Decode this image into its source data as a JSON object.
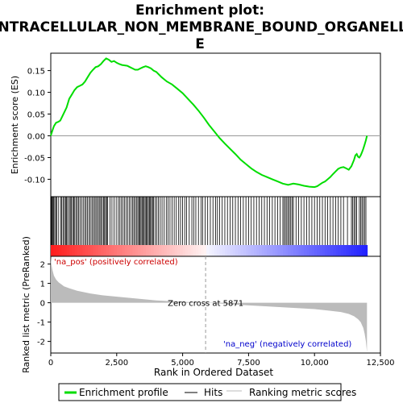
{
  "chart_data": {
    "type": "line",
    "title_line1": "Enrichment plot:",
    "title_line2": "INTRACELLULAR_NON_MEMBRANE_BOUND_ORGANELL",
    "title_line3": "E",
    "es_panel": {
      "ylabel": "Enrichment score (ES)",
      "ylim": [
        -0.14,
        0.19
      ],
      "yticks": [
        -0.1,
        -0.05,
        0.0,
        0.05,
        0.1,
        0.15
      ],
      "ytick_labels": [
        "-0.10",
        "-0.05",
        "0.00",
        "0.05",
        "0.10",
        "0.15"
      ],
      "series_name": "Enrichment profile",
      "color": "#00dd00",
      "x": [
        0,
        60,
        120,
        200,
        280,
        360,
        440,
        520,
        600,
        700,
        800,
        900,
        1000,
        1100,
        1200,
        1300,
        1400,
        1500,
        1600,
        1700,
        1800,
        1900,
        2000,
        2100,
        2200,
        2300,
        2400,
        2500,
        2600,
        2700,
        2800,
        2900,
        3000,
        3100,
        3200,
        3300,
        3400,
        3500,
        3600,
        3700,
        3800,
        3900,
        4000,
        4200,
        4400,
        4600,
        4800,
        5000,
        5200,
        5400,
        5600,
        5800,
        6000,
        6200,
        6400,
        6600,
        6800,
        7000,
        7200,
        7400,
        7600,
        7800,
        8000,
        8200,
        8400,
        8600,
        8800,
        9000,
        9200,
        9400,
        9600,
        9800,
        10000,
        10100,
        10200,
        10300,
        10400,
        10500,
        10600,
        10700,
        10800,
        10900,
        11000,
        11100,
        11200,
        11300,
        11400,
        11500,
        11550,
        11600,
        11650,
        11700,
        11750,
        11800,
        11850,
        11900,
        11950,
        11990
      ],
      "y": [
        0.0,
        0.012,
        0.022,
        0.03,
        0.032,
        0.035,
        0.045,
        0.055,
        0.065,
        0.085,
        0.095,
        0.105,
        0.112,
        0.115,
        0.118,
        0.125,
        0.135,
        0.145,
        0.152,
        0.158,
        0.16,
        0.165,
        0.172,
        0.178,
        0.175,
        0.17,
        0.172,
        0.168,
        0.165,
        0.163,
        0.162,
        0.161,
        0.158,
        0.155,
        0.152,
        0.152,
        0.155,
        0.158,
        0.16,
        0.158,
        0.155,
        0.15,
        0.147,
        0.135,
        0.125,
        0.118,
        0.108,
        0.098,
        0.085,
        0.072,
        0.058,
        0.042,
        0.025,
        0.01,
        -0.005,
        -0.018,
        -0.03,
        -0.042,
        -0.055,
        -0.065,
        -0.075,
        -0.083,
        -0.09,
        -0.095,
        -0.1,
        -0.105,
        -0.11,
        -0.113,
        -0.11,
        -0.112,
        -0.115,
        -0.117,
        -0.118,
        -0.116,
        -0.112,
        -0.108,
        -0.105,
        -0.1,
        -0.095,
        -0.088,
        -0.082,
        -0.076,
        -0.073,
        -0.072,
        -0.075,
        -0.078,
        -0.07,
        -0.055,
        -0.045,
        -0.042,
        -0.048,
        -0.05,
        -0.045,
        -0.038,
        -0.03,
        -0.02,
        -0.01,
        0.0
      ]
    },
    "hits_panel": {
      "hit_positions": [
        20,
        45,
        80,
        110,
        150,
        190,
        230,
        300,
        380,
        420,
        470,
        520,
        560,
        600,
        640,
        700,
        740,
        780,
        830,
        870,
        910,
        960,
        1010,
        1060,
        1110,
        1170,
        1230,
        1290,
        1340,
        1390,
        1450,
        1500,
        1560,
        1610,
        1660,
        1710,
        1760,
        1810,
        1860,
        1900,
        1950,
        2000,
        2040,
        2080,
        2120,
        2160,
        2250,
        2320,
        2400,
        2480,
        2560,
        2620,
        2680,
        2740,
        2800,
        2860,
        2920,
        2980,
        3040,
        3100,
        3150,
        3200,
        3250,
        3300,
        3340,
        3380,
        3420,
        3460,
        3500,
        3540,
        3580,
        3620,
        3660,
        3700,
        3740,
        3780,
        3820,
        3860,
        3900,
        3960,
        4020,
        4080,
        4150,
        4220,
        4300,
        4380,
        4450,
        4520,
        4600,
        4680,
        4760,
        4850,
        4920,
        5000,
        5080,
        5150,
        5250,
        5350,
        5420,
        5500,
        5600,
        5700,
        5760,
        5850,
        5950,
        6050,
        6150,
        6250,
        6320,
        6400,
        6500,
        6600,
        6700,
        6800,
        6900,
        7000,
        7100,
        7200,
        7300,
        7400,
        7500,
        7600,
        7700,
        7800,
        7900,
        8000,
        8100,
        8200,
        8300,
        8400,
        8500,
        8600,
        8700,
        8800,
        8850,
        8900,
        8950,
        9000,
        9050,
        9100,
        9150,
        9200,
        9300,
        9400,
        9500,
        9600,
        9700,
        9800,
        9900,
        10000,
        10100,
        10200,
        10300,
        10400,
        10500,
        10600,
        10700,
        10800,
        10900,
        11000,
        11100,
        11250,
        11400,
        11450,
        11500,
        11550,
        11600,
        11700,
        11750,
        11800,
        11850,
        11900,
        11950
      ]
    },
    "rank_panel": {
      "ylabel": "Ranked list metric (PreRanked)",
      "ylim": [
        -2.6,
        2.4
      ],
      "yticks": [
        -2,
        -1,
        0,
        1,
        2
      ],
      "ytick_labels": [
        "-2",
        "-1",
        "0",
        "1",
        "2"
      ],
      "x": [
        0,
        20,
        60,
        120,
        200,
        300,
        400,
        500,
        700,
        1000,
        1500,
        2000,
        3000,
        4000,
        5000,
        5871,
        6500,
        7000,
        8000,
        9000,
        10000,
        10500,
        11000,
        11300,
        11500,
        11650,
        11750,
        11800,
        11850,
        11900,
        11950,
        11990
      ],
      "y": [
        2.4,
        2.0,
        1.7,
        1.4,
        1.2,
        1.05,
        0.95,
        0.85,
        0.75,
        0.62,
        0.48,
        0.38,
        0.25,
        0.12,
        0.05,
        0.0,
        -0.05,
        -0.1,
        -0.17,
        -0.25,
        -0.33,
        -0.4,
        -0.48,
        -0.58,
        -0.7,
        -0.85,
        -1.0,
        -1.15,
        -1.3,
        -1.6,
        -2.0,
        -2.55
      ],
      "zero_cross_label": "Zero cross at 5871",
      "zero_cross_x": 5871,
      "pos_label": "'na_pos' (positively correlated)",
      "neg_label": "'na_neg' (negatively correlated)"
    },
    "xlabel": "Rank in Ordered Dataset",
    "xlim": [
      0,
      12500
    ],
    "xticks": [
      0,
      2500,
      5000,
      7500,
      10000,
      12500
    ],
    "xtick_labels": [
      "0",
      "2,500",
      "5,000",
      "7,500",
      "10,000",
      "12,500"
    ],
    "legend": {
      "placement": "bottom",
      "items": [
        {
          "label": "Enrichment profile",
          "color": "#00dd00"
        },
        {
          "label": "Hits",
          "color": "#000000"
        },
        {
          "label": "Ranking metric scores",
          "color": "#bbbbbb"
        }
      ]
    },
    "grid": false
  }
}
